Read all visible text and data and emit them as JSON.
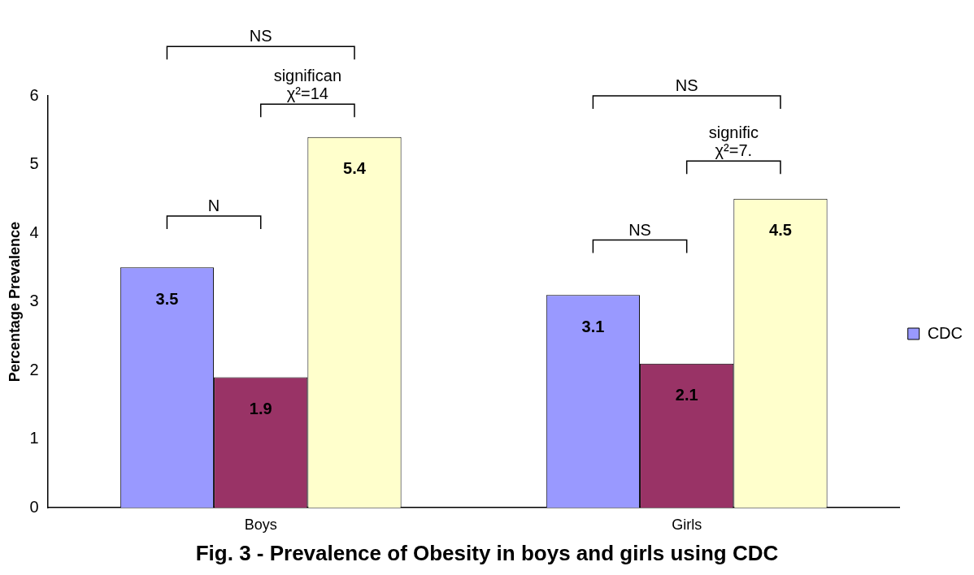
{
  "chart_data": {
    "type": "bar",
    "title": "Fig. 3 - Prevalence of Obesity in boys and girls using CDC",
    "ylabel": "Percentage Prevalence",
    "categories": [
      "Boys",
      "Girls"
    ],
    "series": [
      {
        "name": "CDC",
        "color": "#9999ff",
        "values": [
          3.5,
          3.1
        ]
      },
      {
        "color": "#993366",
        "values": [
          1.9,
          2.1
        ]
      },
      {
        "color": "#ffffcc",
        "values": [
          5.4,
          4.5
        ]
      }
    ],
    "ylim": [
      0,
      6
    ],
    "yticks": [
      0,
      1,
      2,
      3,
      4,
      5,
      6
    ],
    "grid": false,
    "legend": "right",
    "data_labels": true,
    "annotations": [
      "NS",
      "significan",
      "χ²=14",
      "N",
      "NS",
      "signific",
      "χ²=7.",
      "NS"
    ]
  }
}
